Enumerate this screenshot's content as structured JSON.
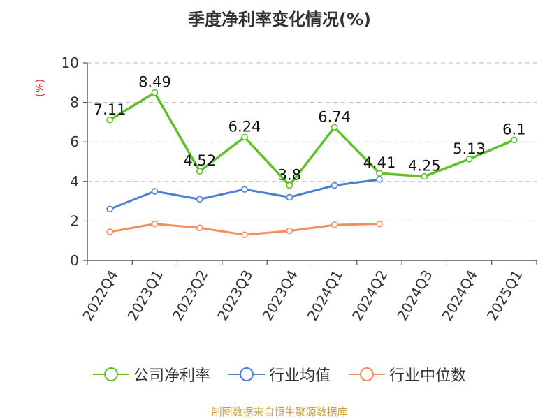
{
  "title": "季度净利率变化情况(%)",
  "source": "制图数据来自恒生聚源数据库",
  "colors": {
    "company": "#5cc327",
    "industry_avg": "#4a7fd8",
    "industry_median": "#f28e5c",
    "ylabel": "#e0302a",
    "grid": "#bbbbbb",
    "axis": "#333333"
  },
  "chart_data": {
    "type": "line",
    "title": "季度净利率变化情况(%)",
    "xlabel": "",
    "ylabel": "(%)",
    "ylim": [
      0,
      10
    ],
    "yticks": [
      0,
      2,
      4,
      6,
      8,
      10
    ],
    "grid": true,
    "legend_position": "bottom",
    "categories": [
      "2022Q4",
      "2023Q1",
      "2023Q2",
      "2023Q3",
      "2023Q4",
      "2024Q1",
      "2024Q2",
      "2024Q3",
      "2024Q4",
      "2025Q1"
    ],
    "series": [
      {
        "name": "公司净利率",
        "key": "company",
        "values": [
          7.11,
          8.49,
          4.52,
          6.24,
          3.8,
          6.74,
          4.41,
          4.25,
          5.13,
          6.1
        ],
        "labels": [
          "7.11",
          "8.49",
          "4.52",
          "6.24",
          "3.8",
          "6.74",
          "4.41",
          "4.25",
          "5.13",
          "6.1"
        ]
      },
      {
        "name": "行业均值",
        "key": "industry_avg",
        "values": [
          2.6,
          3.5,
          3.1,
          3.6,
          3.2,
          3.8,
          4.1,
          null,
          null,
          null
        ]
      },
      {
        "name": "行业中位数",
        "key": "industry_median",
        "values": [
          1.45,
          1.85,
          1.65,
          1.3,
          1.5,
          1.8,
          1.85,
          null,
          null,
          null
        ]
      }
    ]
  }
}
